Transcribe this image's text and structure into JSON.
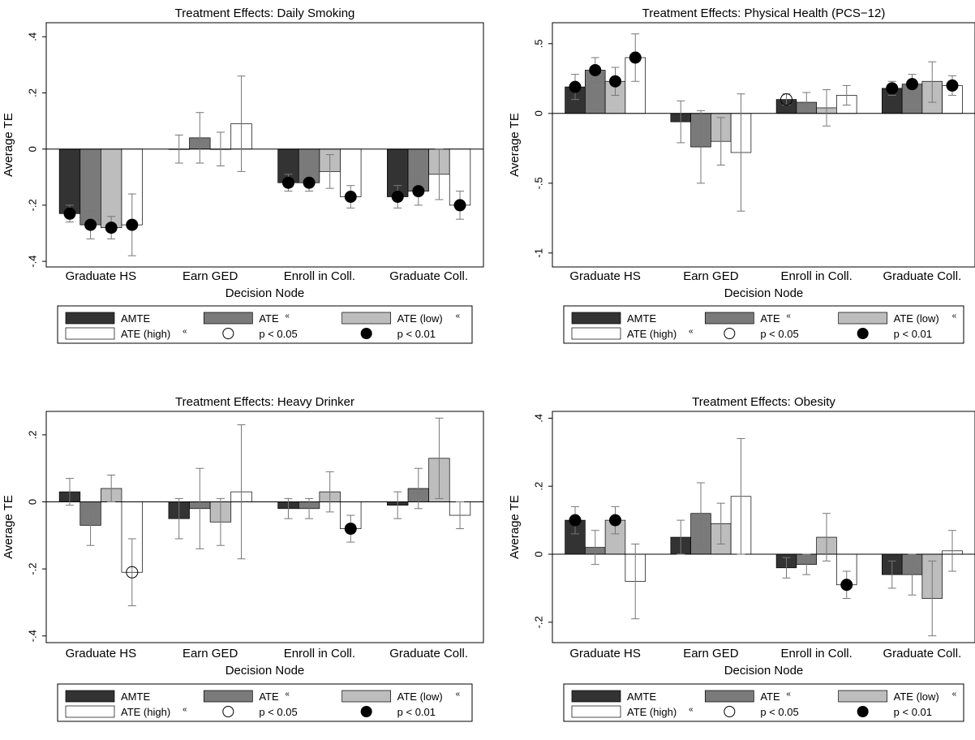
{
  "xlabel": "Decision Node",
  "ylabel": "Average TE",
  "categories": [
    "Graduate HS",
    "Earn GED",
    "Enroll in Coll.",
    "Graduate Coll."
  ],
  "legend": {
    "amte": "AMTE",
    "ate": "ATE",
    "ate_low": "ATE  (low)",
    "ate_high": "ATE  (high)",
    "p05": "p < 0.05",
    "p01": "p < 0.01",
    "mark": "«"
  },
  "colors": {
    "amte": "#333333",
    "ate": "#7a7a7a",
    "ate_low": "#bdbdbd",
    "ate_high": "#ffffff"
  },
  "chart_data": [
    {
      "type": "bar",
      "title": "Treatment Effects: Daily Smoking",
      "yticks": [
        ".4",
        ".2",
        "0",
        "-.2",
        "-.4"
      ],
      "ytick_values": [
        0.4,
        0.2,
        0,
        -0.2,
        -0.4
      ],
      "ylim": [
        -0.42,
        0.45
      ],
      "categories": [
        "Graduate HS",
        "Earn GED",
        "Enroll in Coll.",
        "Graduate Coll."
      ],
      "series": [
        {
          "name": "AMTE",
          "values": [
            -0.23,
            0.0,
            -0.12,
            -0.17
          ],
          "ci": [
            [
              -0.26,
              -0.2
            ],
            [
              -0.05,
              0.05
            ],
            [
              -0.15,
              -0.09
            ],
            [
              -0.21,
              -0.13
            ]
          ],
          "sig": [
            "p01",
            "",
            "p01",
            "p01"
          ]
        },
        {
          "name": "ATE",
          "values": [
            -0.27,
            0.04,
            -0.12,
            -0.15
          ],
          "ci": [
            [
              -0.32,
              -0.22
            ],
            [
              -0.05,
              0.13
            ],
            [
              -0.15,
              -0.09
            ],
            [
              -0.2,
              -0.1
            ]
          ],
          "sig": [
            "p01",
            "",
            "p01",
            "p01"
          ]
        },
        {
          "name": "ATE (low)",
          "values": [
            -0.28,
            0.0,
            -0.08,
            -0.09
          ],
          "ci": [
            [
              -0.32,
              -0.24
            ],
            [
              -0.06,
              0.06
            ],
            [
              -0.14,
              -0.02
            ],
            [
              -0.18,
              0.0
            ]
          ],
          "sig": [
            "p01",
            "",
            "",
            ""
          ]
        },
        {
          "name": "ATE (high)",
          "values": [
            -0.27,
            0.09,
            -0.17,
            -0.2
          ],
          "ci": [
            [
              -0.38,
              -0.16
            ],
            [
              -0.08,
              0.26
            ],
            [
              -0.21,
              -0.13
            ],
            [
              -0.25,
              -0.15
            ]
          ],
          "sig": [
            "p01",
            "",
            "p01",
            "p01"
          ]
        }
      ]
    },
    {
      "type": "bar",
      "title": "Treatment Effects: Physical Health (PCS−12)",
      "yticks": [
        ".5",
        "0",
        "-.5",
        "-1"
      ],
      "ytick_values": [
        0.5,
        0,
        -0.5,
        -1
      ],
      "ylim": [
        -1.1,
        0.65
      ],
      "categories": [
        "Graduate HS",
        "Earn GED",
        "Enroll in Coll.",
        "Graduate Coll."
      ],
      "series": [
        {
          "name": "AMTE",
          "values": [
            0.19,
            -0.06,
            0.1,
            0.18
          ],
          "ci": [
            [
              0.1,
              0.28
            ],
            [
              -0.21,
              0.09
            ],
            [
              0.06,
              0.14
            ],
            [
              0.13,
              0.23
            ]
          ],
          "sig": [
            "p01",
            "",
            "p05",
            "p01"
          ]
        },
        {
          "name": "ATE",
          "values": [
            0.31,
            -0.24,
            0.08,
            0.21
          ],
          "ci": [
            [
              0.22,
              0.4
            ],
            [
              -0.5,
              0.02
            ],
            [
              0.01,
              0.15
            ],
            [
              0.14,
              0.28
            ]
          ],
          "sig": [
            "p01",
            "",
            "",
            "p01"
          ]
        },
        {
          "name": "ATE (low)",
          "values": [
            0.23,
            -0.2,
            0.04,
            0.23
          ],
          "ci": [
            [
              0.13,
              0.33
            ],
            [
              -0.37,
              -0.03
            ],
            [
              -0.09,
              0.17
            ],
            [
              0.08,
              0.37
            ]
          ],
          "sig": [
            "p01",
            "",
            "",
            ""
          ]
        },
        {
          "name": "ATE (high)",
          "values": [
            0.4,
            -0.28,
            0.13,
            0.2
          ],
          "ci": [
            [
              0.23,
              0.57
            ],
            [
              -0.7,
              0.14
            ],
            [
              0.06,
              0.2
            ],
            [
              0.13,
              0.27
            ]
          ],
          "sig": [
            "p01",
            "",
            "",
            "p01"
          ]
        }
      ]
    },
    {
      "type": "bar",
      "title": "Treatment Effects: Heavy Drinker",
      "yticks": [
        ".2",
        "0",
        "-.2",
        "-.4"
      ],
      "ytick_values": [
        0.2,
        0,
        -0.2,
        -0.4
      ],
      "ylim": [
        -0.42,
        0.27
      ],
      "categories": [
        "Graduate HS",
        "Earn GED",
        "Enroll in Coll.",
        "Graduate Coll."
      ],
      "series": [
        {
          "name": "AMTE",
          "values": [
            0.03,
            -0.05,
            -0.02,
            -0.01
          ],
          "ci": [
            [
              -0.01,
              0.07
            ],
            [
              -0.11,
              0.01
            ],
            [
              -0.05,
              0.01
            ],
            [
              -0.05,
              0.03
            ]
          ],
          "sig": [
            "",
            "",
            "",
            ""
          ]
        },
        {
          "name": "ATE",
          "values": [
            -0.07,
            -0.02,
            -0.02,
            0.04
          ],
          "ci": [
            [
              -0.13,
              -0.01
            ],
            [
              -0.14,
              0.1
            ],
            [
              -0.05,
              0.01
            ],
            [
              -0.02,
              0.1
            ]
          ],
          "sig": [
            "",
            "",
            "",
            ""
          ]
        },
        {
          "name": "ATE (low)",
          "values": [
            0.04,
            -0.06,
            0.03,
            0.13
          ],
          "ci": [
            [
              0.0,
              0.08
            ],
            [
              -0.13,
              0.01
            ],
            [
              -0.03,
              0.09
            ],
            [
              0.01,
              0.25
            ]
          ],
          "sig": [
            "",
            "",
            "",
            ""
          ]
        },
        {
          "name": "ATE (high)",
          "values": [
            -0.21,
            0.03,
            -0.08,
            -0.04
          ],
          "ci": [
            [
              -0.31,
              -0.11
            ],
            [
              -0.17,
              0.23
            ],
            [
              -0.12,
              -0.04
            ],
            [
              -0.08,
              0.0
            ]
          ],
          "sig": [
            "p05",
            "",
            "p01",
            ""
          ]
        }
      ]
    },
    {
      "type": "bar",
      "title": "Treatment Effects: Obesity",
      "yticks": [
        ".4",
        ".2",
        "0",
        "-.2"
      ],
      "ytick_values": [
        0.4,
        0.2,
        0,
        -0.2
      ],
      "ylim": [
        -0.26,
        0.42
      ],
      "categories": [
        "Graduate HS",
        "Earn GED",
        "Enroll in Coll.",
        "Graduate Coll."
      ],
      "series": [
        {
          "name": "AMTE",
          "values": [
            0.1,
            0.05,
            -0.04,
            -0.06
          ],
          "ci": [
            [
              0.06,
              0.14
            ],
            [
              0.0,
              0.1
            ],
            [
              -0.07,
              -0.01
            ],
            [
              -0.1,
              -0.02
            ]
          ],
          "sig": [
            "p01",
            "",
            "",
            ""
          ]
        },
        {
          "name": "ATE",
          "values": [
            0.02,
            0.12,
            -0.03,
            -0.06
          ],
          "ci": [
            [
              -0.03,
              0.07
            ],
            [
              0.03,
              0.21
            ],
            [
              -0.06,
              0.0
            ],
            [
              -0.12,
              0.0
            ]
          ],
          "sig": [
            "",
            "",
            "",
            ""
          ]
        },
        {
          "name": "ATE (low)",
          "values": [
            0.1,
            0.09,
            0.05,
            -0.13
          ],
          "ci": [
            [
              0.06,
              0.14
            ],
            [
              0.03,
              0.15
            ],
            [
              -0.02,
              0.12
            ],
            [
              -0.24,
              -0.02
            ]
          ],
          "sig": [
            "p01",
            "",
            "",
            ""
          ]
        },
        {
          "name": "ATE (high)",
          "values": [
            -0.08,
            0.17,
            -0.09,
            0.01
          ],
          "ci": [
            [
              -0.19,
              0.03
            ],
            [
              0.0,
              0.34
            ],
            [
              -0.13,
              -0.05
            ],
            [
              -0.05,
              0.07
            ]
          ],
          "sig": [
            "",
            "",
            "p01",
            ""
          ]
        }
      ]
    }
  ]
}
